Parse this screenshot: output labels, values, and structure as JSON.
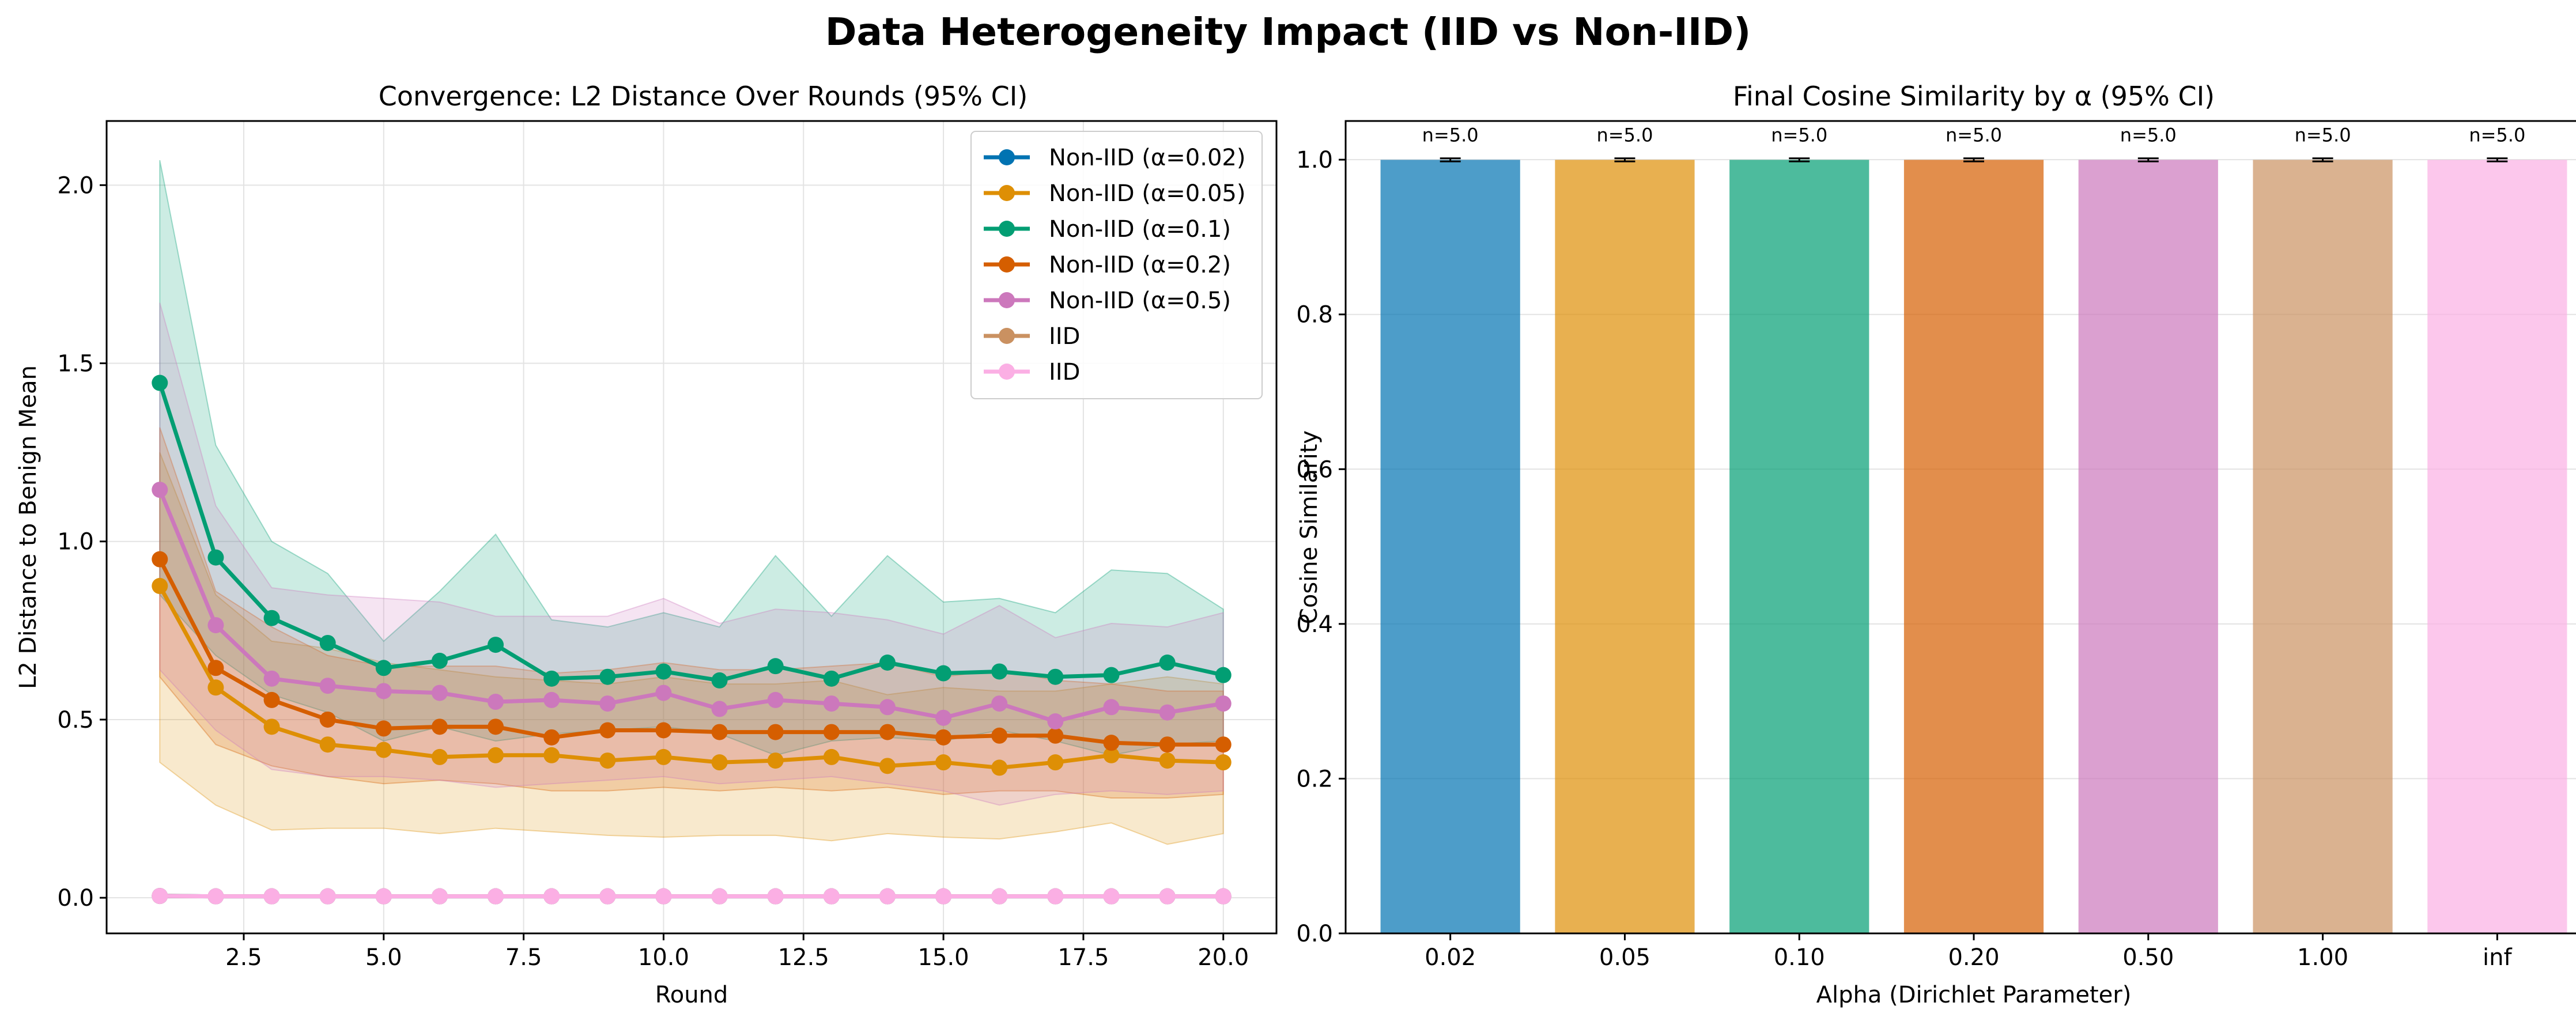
{
  "suptitle": "Data Heterogeneity Impact (IID vs Non-IID)",
  "chart_data": [
    {
      "type": "line",
      "title": "Convergence: L2 Distance Over Rounds (95% CI)",
      "xlabel": "Round",
      "ylabel": "L2 Distance to Benign Mean",
      "xlim": [
        0.05,
        20.95
      ],
      "ylim": [
        -0.1,
        2.18
      ],
      "xticks": [
        "2.5",
        "5.0",
        "7.5",
        "10.0",
        "12.5",
        "15.0",
        "17.5",
        "20.0"
      ],
      "yticks": [
        "0.0",
        "0.5",
        "1.0",
        "1.5",
        "2.0"
      ],
      "grid": true,
      "legend_position": "top-right",
      "x": [
        1,
        2,
        3,
        4,
        5,
        6,
        7,
        8,
        9,
        10,
        11,
        12,
        13,
        14,
        15,
        16,
        17,
        18,
        19,
        20
      ],
      "series": [
        {
          "name": "Non-IID (α=0.02)",
          "color": "#0173b2",
          "values": [
            0.005,
            0.004,
            0.004,
            0.004,
            0.004,
            0.004,
            0.004,
            0.004,
            0.004,
            0.004,
            0.004,
            0.004,
            0.004,
            0.004,
            0.004,
            0.004,
            0.004,
            0.004,
            0.004,
            0.004
          ],
          "ci_low": [
            0.0,
            0.0,
            0.0,
            0.0,
            0.0,
            0.0,
            0.0,
            0.0,
            0.0,
            0.0,
            0.0,
            0.0,
            0.0,
            0.0,
            0.0,
            0.0,
            0.0,
            0.0,
            0.0,
            0.0
          ],
          "ci_high": [
            0.01,
            0.008,
            0.008,
            0.008,
            0.008,
            0.008,
            0.008,
            0.008,
            0.008,
            0.008,
            0.008,
            0.008,
            0.008,
            0.008,
            0.008,
            0.008,
            0.008,
            0.008,
            0.008,
            0.008
          ]
        },
        {
          "name": "Non-IID (α=0.05)",
          "color": "#de8f05",
          "values": [
            0.875,
            0.59,
            0.48,
            0.43,
            0.415,
            0.395,
            0.4,
            0.4,
            0.385,
            0.395,
            0.38,
            0.385,
            0.395,
            0.37,
            0.38,
            0.365,
            0.38,
            0.4,
            0.385,
            0.38
          ],
          "ci_low": [
            0.38,
            0.26,
            0.19,
            0.195,
            0.195,
            0.18,
            0.195,
            0.185,
            0.175,
            0.17,
            0.175,
            0.175,
            0.16,
            0.18,
            0.17,
            0.165,
            0.185,
            0.21,
            0.15,
            0.18
          ],
          "ci_high": [
            1.25,
            0.85,
            0.72,
            0.7,
            0.66,
            0.64,
            0.62,
            0.61,
            0.6,
            0.62,
            0.6,
            0.6,
            0.61,
            0.57,
            0.59,
            0.58,
            0.58,
            0.6,
            0.62,
            0.6
          ]
        },
        {
          "name": "Non-IID (α=0.1)",
          "color": "#029e73",
          "values": [
            1.445,
            0.955,
            0.785,
            0.715,
            0.645,
            0.665,
            0.71,
            0.615,
            0.62,
            0.635,
            0.61,
            0.65,
            0.615,
            0.66,
            0.63,
            0.635,
            0.62,
            0.625,
            0.66,
            0.625
          ],
          "ci_low": [
            0.85,
            0.68,
            0.57,
            0.52,
            0.44,
            0.48,
            0.44,
            0.46,
            0.47,
            0.48,
            0.46,
            0.4,
            0.44,
            0.45,
            0.44,
            0.47,
            0.44,
            0.4,
            0.43,
            0.44
          ],
          "ci_high": [
            2.07,
            1.27,
            1.0,
            0.91,
            0.72,
            0.86,
            1.02,
            0.78,
            0.76,
            0.8,
            0.76,
            0.96,
            0.79,
            0.96,
            0.83,
            0.84,
            0.8,
            0.92,
            0.91,
            0.81
          ]
        },
        {
          "name": "Non-IID (α=0.2)",
          "color": "#d55e00",
          "values": [
            0.95,
            0.645,
            0.555,
            0.5,
            0.475,
            0.48,
            0.48,
            0.45,
            0.47,
            0.47,
            0.465,
            0.465,
            0.465,
            0.465,
            0.45,
            0.455,
            0.455,
            0.435,
            0.43,
            0.43
          ],
          "ci_low": [
            0.62,
            0.43,
            0.37,
            0.34,
            0.32,
            0.33,
            0.32,
            0.3,
            0.3,
            0.31,
            0.3,
            0.31,
            0.3,
            0.31,
            0.29,
            0.3,
            0.3,
            0.28,
            0.28,
            0.29
          ],
          "ci_high": [
            1.32,
            0.86,
            0.76,
            0.68,
            0.65,
            0.65,
            0.65,
            0.63,
            0.64,
            0.66,
            0.64,
            0.64,
            0.65,
            0.66,
            0.62,
            0.64,
            0.61,
            0.6,
            0.58,
            0.58
          ]
        },
        {
          "name": "Non-IID (α=0.5)",
          "color": "#cc78bc",
          "values": [
            1.145,
            0.765,
            0.615,
            0.595,
            0.58,
            0.575,
            0.55,
            0.555,
            0.545,
            0.575,
            0.53,
            0.555,
            0.545,
            0.535,
            0.505,
            0.545,
            0.495,
            0.535,
            0.52,
            0.545
          ],
          "ci_low": [
            0.64,
            0.47,
            0.36,
            0.34,
            0.34,
            0.33,
            0.31,
            0.32,
            0.33,
            0.34,
            0.32,
            0.33,
            0.34,
            0.32,
            0.3,
            0.26,
            0.29,
            0.3,
            0.29,
            0.3
          ],
          "ci_high": [
            1.67,
            1.1,
            0.87,
            0.85,
            0.84,
            0.83,
            0.79,
            0.79,
            0.79,
            0.84,
            0.77,
            0.81,
            0.8,
            0.78,
            0.74,
            0.82,
            0.73,
            0.77,
            0.76,
            0.8
          ]
        },
        {
          "name": "IID",
          "color": "#ca9161",
          "values": [
            0.005,
            0.004,
            0.004,
            0.004,
            0.004,
            0.004,
            0.004,
            0.004,
            0.004,
            0.004,
            0.004,
            0.004,
            0.004,
            0.004,
            0.004,
            0.004,
            0.004,
            0.004,
            0.004,
            0.004
          ],
          "ci_low": [
            0.0,
            0.0,
            0.0,
            0.0,
            0.0,
            0.0,
            0.0,
            0.0,
            0.0,
            0.0,
            0.0,
            0.0,
            0.0,
            0.0,
            0.0,
            0.0,
            0.0,
            0.0,
            0.0,
            0.0
          ],
          "ci_high": [
            0.01,
            0.008,
            0.008,
            0.008,
            0.008,
            0.008,
            0.008,
            0.008,
            0.008,
            0.008,
            0.008,
            0.008,
            0.008,
            0.008,
            0.008,
            0.008,
            0.008,
            0.008,
            0.008,
            0.008
          ]
        },
        {
          "name": "IID",
          "color": "#fbafe4",
          "values": [
            0.005,
            0.004,
            0.004,
            0.004,
            0.004,
            0.004,
            0.004,
            0.004,
            0.004,
            0.004,
            0.004,
            0.004,
            0.004,
            0.004,
            0.004,
            0.004,
            0.004,
            0.004,
            0.004,
            0.004
          ],
          "ci_low": [
            0.0,
            0.0,
            0.0,
            0.0,
            0.0,
            0.0,
            0.0,
            0.0,
            0.0,
            0.0,
            0.0,
            0.0,
            0.0,
            0.0,
            0.0,
            0.0,
            0.0,
            0.0,
            0.0,
            0.0
          ],
          "ci_high": [
            0.01,
            0.008,
            0.008,
            0.008,
            0.008,
            0.008,
            0.008,
            0.008,
            0.008,
            0.008,
            0.008,
            0.008,
            0.008,
            0.008,
            0.008,
            0.008,
            0.008,
            0.008,
            0.008,
            0.008
          ]
        }
      ]
    },
    {
      "type": "bar",
      "title": "Final Cosine Similarity by α (95% CI)",
      "xlabel": "Alpha (Dirichlet Parameter)",
      "ylabel": "Cosine Similarity",
      "ylim": [
        0,
        1.05
      ],
      "yticks": [
        "0.0",
        "0.2",
        "0.4",
        "0.6",
        "0.8",
        "1.0"
      ],
      "grid": true,
      "categories": [
        "0.02",
        "0.05",
        "0.10",
        "0.20",
        "0.50",
        "1.00",
        "inf"
      ],
      "values": [
        0.9998,
        0.9998,
        0.9998,
        0.9998,
        0.9998,
        0.9998,
        0.9998
      ],
      "errors": [
        0.002,
        0.002,
        0.002,
        0.002,
        0.002,
        0.002,
        0.002
      ],
      "annotations": [
        "n=5.0",
        "n=5.0",
        "n=5.0",
        "n=5.0",
        "n=5.0",
        "n=5.0",
        "n=5.0"
      ],
      "colors": [
        "#0173b2",
        "#de8f05",
        "#029e73",
        "#d55e00",
        "#cc78bc",
        "#ca9161",
        "#fbafe4"
      ]
    }
  ]
}
